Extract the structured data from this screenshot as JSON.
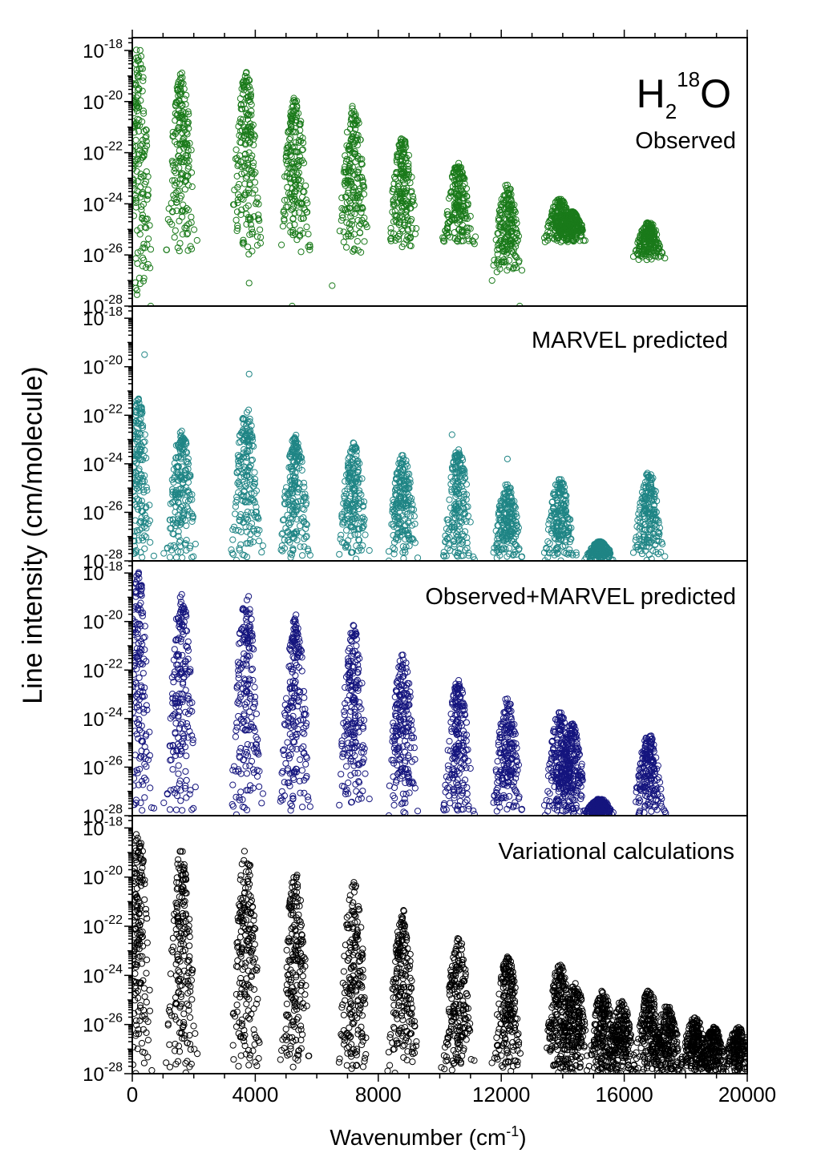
{
  "figure": {
    "ylabel": "Line   intensity   (cm/molecule)",
    "xlabel_main": "Wavenumber (cm",
    "xlabel_sup": "-1",
    "xlabel_close": ")",
    "molecule": {
      "base": "H",
      "sub": "2",
      "sup": "18",
      "tail": "O"
    }
  },
  "chart_data": [
    {
      "type": "scatter",
      "title": "Observed",
      "color": "#1a7a1a",
      "xlim": [
        0,
        20000
      ],
      "ylim_exp": [
        -28,
        -17.5
      ],
      "log_scale": true,
      "band_centers": [
        200,
        1600,
        3700,
        5300,
        7200,
        8800,
        10600,
        12200,
        13900,
        14300,
        16800
      ],
      "band_peaks_exp": [
        -17.6,
        -18.8,
        -18.8,
        -19.8,
        -20.1,
        -21.4,
        -22.4,
        -23.2,
        -23.8,
        -24.3,
        -24.7
      ],
      "band_floor_exp": [
        -28,
        -26,
        -26,
        -26,
        -26,
        -25.8,
        -25.6,
        -26.8,
        -25.5,
        -25.5,
        -26.2
      ],
      "outliers": [
        [
          600,
          -28
        ],
        [
          3800,
          -27.1
        ],
        [
          5200,
          -28
        ],
        [
          6500,
          -27.2
        ],
        [
          11700,
          -27
        ],
        [
          12600,
          -28
        ]
      ],
      "x_ticks": [
        0,
        4000,
        8000,
        12000,
        16000,
        20000
      ],
      "y_tick_exps": [
        -18,
        -20,
        -22,
        -24,
        -26,
        -28
      ]
    },
    {
      "type": "scatter",
      "title": "MARVEL predicted",
      "color": "#1f8585",
      "xlim": [
        0,
        20000
      ],
      "ylim_exp": [
        -28,
        -17.5
      ],
      "log_scale": true,
      "band_centers": [
        200,
        1600,
        3700,
        5300,
        7200,
        8800,
        10600,
        12200,
        13900,
        15200,
        16800
      ],
      "band_peaks_exp": [
        -21.2,
        -22.6,
        -21.6,
        -22.8,
        -23.1,
        -23.6,
        -23.4,
        -24.8,
        -24.6,
        -27.2,
        -24.3
      ],
      "band_floor_exp": [
        -28,
        -28,
        -28,
        -28,
        -28,
        -28,
        -28,
        -28,
        -28,
        -28,
        -28
      ],
      "outliers": [
        [
          400,
          -19.5
        ],
        [
          3800,
          -20.3
        ],
        [
          3600,
          -22.6
        ],
        [
          10400,
          -22.8
        ],
        [
          12200,
          -23.8
        ]
      ],
      "x_ticks": [
        0,
        4000,
        8000,
        12000,
        16000,
        20000
      ],
      "y_tick_exps": [
        -18,
        -20,
        -22,
        -24,
        -26,
        -28
      ]
    },
    {
      "type": "scatter",
      "title": "Observed+MARVEL predicted",
      "color": "#15157e",
      "xlim": [
        0,
        20000
      ],
      "ylim_exp": [
        -28,
        -17.5
      ],
      "log_scale": true,
      "band_centers": [
        200,
        1600,
        3700,
        5300,
        7200,
        8800,
        10600,
        12200,
        13900,
        14300,
        15200,
        16800
      ],
      "band_peaks_exp": [
        -17.8,
        -18.8,
        -18.7,
        -19.7,
        -20.1,
        -21.3,
        -22.4,
        -23.1,
        -23.7,
        -24.2,
        -27.3,
        -24.6
      ],
      "band_floor_exp": [
        -28,
        -28,
        -28,
        -28,
        -28,
        -28,
        -28,
        -28,
        -28,
        -28,
        -28,
        -28
      ],
      "outliers": [],
      "x_ticks": [
        0,
        4000,
        8000,
        12000,
        16000,
        20000
      ],
      "y_tick_exps": [
        -18,
        -20,
        -22,
        -24,
        -26,
        -28
      ]
    },
    {
      "type": "scatter",
      "title": "Variational calculations",
      "color": "#000000",
      "xlim": [
        0,
        20000
      ],
      "ylim_exp": [
        -28,
        -17.5
      ],
      "log_scale": true,
      "band_centers": [
        200,
        1600,
        3700,
        5300,
        7200,
        8800,
        10600,
        12200,
        13900,
        14400,
        15300,
        15900,
        16800,
        17400,
        18300,
        18900,
        19700
      ],
      "band_peaks_exp": [
        -17.9,
        -18.8,
        -18.8,
        -19.8,
        -20.1,
        -21.3,
        -22.4,
        -23.2,
        -23.5,
        -24.3,
        -24.6,
        -25.0,
        -24.6,
        -25.2,
        -25.7,
        -26.1,
        -26.1
      ],
      "band_floor_exp": [
        -28,
        -28,
        -28,
        -28,
        -28,
        -28,
        -28,
        -28,
        -28,
        -28,
        -28,
        -28,
        -28,
        -28,
        -28,
        -28,
        -28
      ],
      "outliers": [],
      "x_ticks": [
        0,
        4000,
        8000,
        12000,
        16000,
        20000
      ],
      "y_tick_exps": [
        -18,
        -20,
        -22,
        -24,
        -26,
        -28
      ]
    }
  ]
}
